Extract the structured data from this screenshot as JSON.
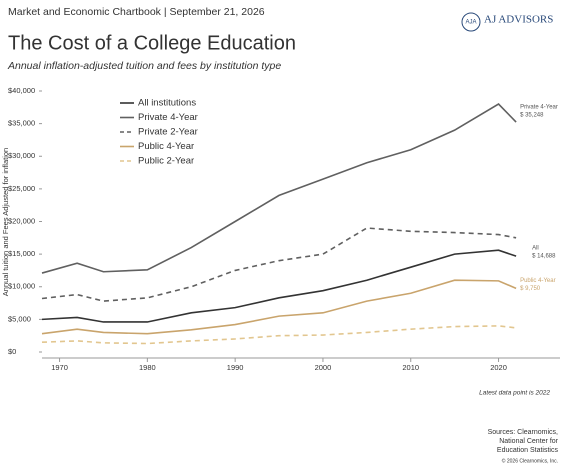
{
  "header": {
    "source_line": "Market and Economic Chartbook | September 21, 2026",
    "logo_text": "AJ ADVISORS",
    "logo_mark": "AJA"
  },
  "chart_data": {
    "type": "line",
    "title": "The Cost of a College Education",
    "subtitle": "Annual inflation-adjusted tuition and fees by institution type",
    "y_label": "Annual tuition and Fees Adjusted for inflation",
    "note": "Latest data point is 2022",
    "x": [
      1968,
      1972,
      1975,
      1980,
      1985,
      1990,
      1995,
      2000,
      2005,
      2010,
      2015,
      2020,
      2022
    ],
    "xlim": [
      1968,
      2027
    ],
    "xticks": [
      1970,
      1980,
      1990,
      2000,
      2010,
      2020
    ],
    "ylim": [
      0,
      40000
    ],
    "yticks": [
      {
        "value": 0,
        "label": "$0"
      },
      {
        "value": 5000,
        "label": "$5,000"
      },
      {
        "value": 10000,
        "label": "$10,000"
      },
      {
        "value": 15000,
        "label": "$15,000"
      },
      {
        "value": 20000,
        "label": "$20,000"
      },
      {
        "value": 25000,
        "label": "$25,000"
      },
      {
        "value": 30000,
        "label": "$30,000"
      },
      {
        "value": 35000,
        "label": "$35,000"
      },
      {
        "value": 40000,
        "label": "$40,000"
      }
    ],
    "legend": "top-left",
    "series": [
      {
        "name": "All institutions",
        "color": "#333333",
        "dash": false,
        "end_name": "All",
        "values": [
          5000,
          5300,
          4600,
          4600,
          6000,
          6800,
          8300,
          9400,
          11000,
          13000,
          15000,
          15600,
          14688
        ],
        "value_labels": [
          null,
          null,
          null,
          null,
          null,
          null,
          null,
          null,
          null,
          null,
          null,
          null,
          "$ 14,688"
        ]
      },
      {
        "name": "Private 4-Year",
        "color": "#606060",
        "dash": false,
        "end_name": "Private 4-Year",
        "values": [
          12100,
          13600,
          12300,
          12600,
          16000,
          20000,
          24000,
          26500,
          29000,
          31000,
          34000,
          38000,
          35248
        ],
        "value_labels": [
          null,
          null,
          null,
          null,
          null,
          null,
          null,
          null,
          null,
          null,
          null,
          null,
          "$ 35,248"
        ]
      },
      {
        "name": "Private 2-Year",
        "color": "#606060",
        "dash": true,
        "values": [
          8200,
          8800,
          7800,
          8300,
          10000,
          12500,
          14000,
          15000,
          19000,
          18500,
          18300,
          18000,
          17500
        ]
      },
      {
        "name": "Public 4-Year",
        "color": "#c9a46c",
        "dash": false,
        "end_name": "Public 4-Year",
        "values": [
          2800,
          3500,
          3000,
          2800,
          3400,
          4200,
          5500,
          6000,
          7800,
          9000,
          11000,
          10900,
          9750
        ],
        "value_labels": [
          null,
          null,
          null,
          null,
          null,
          null,
          null,
          null,
          null,
          null,
          null,
          null,
          "$ 9,750"
        ]
      },
      {
        "name": "Public 2-Year",
        "color": "#e2c68f",
        "dash": true,
        "values": [
          1500,
          1700,
          1400,
          1300,
          1700,
          2000,
          2500,
          2600,
          3000,
          3500,
          3900,
          4000,
          3700
        ]
      }
    ]
  },
  "footer": {
    "sources": [
      "Sources: Clearnomics,",
      "National Center for",
      "Education Statistics"
    ],
    "copyright": "© 2026 Clearnomics, Inc."
  }
}
